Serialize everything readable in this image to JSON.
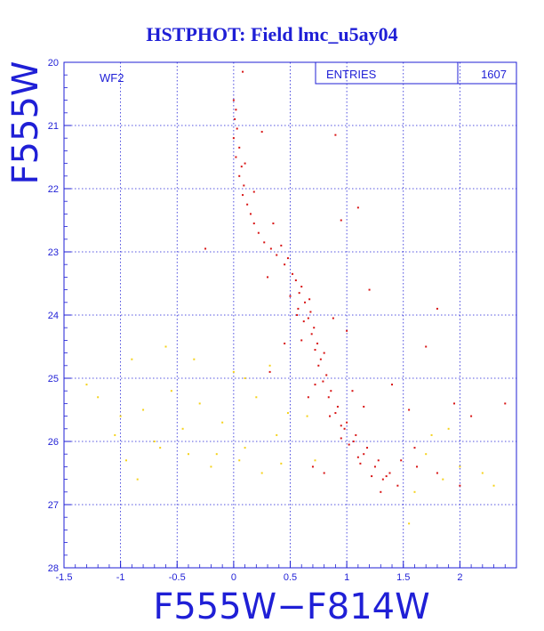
{
  "chart_data": {
    "type": "scatter",
    "title": "HSTPHOT: Field lmc_u5ay04",
    "xlabel": "F555W−F814W",
    "ylabel": "F555W",
    "panel_label": "WF2",
    "stats": {
      "label": "ENTRIES",
      "value": "1607"
    },
    "xlim": [
      -1.5,
      2.5
    ],
    "ylim": [
      28,
      20
    ],
    "y_inverted": true,
    "xticks": [
      -1.5,
      -1,
      -0.5,
      0,
      0.5,
      1,
      1.5,
      2
    ],
    "xtick_labels": [
      "-1.5",
      "-1",
      "-0.5",
      "0",
      "0.5",
      "1",
      "1.5",
      "2"
    ],
    "yticks": [
      20,
      21,
      22,
      23,
      24,
      25,
      26,
      27,
      28
    ],
    "ytick_labels": [
      "20",
      "21",
      "22",
      "23",
      "24",
      "25",
      "26",
      "27",
      "28"
    ],
    "grid": true,
    "grid_style": "dotted",
    "colors": {
      "text": "#1f1fd6",
      "axis": "#1f1fd6",
      "primary_points": "#d81414",
      "secondary_points": "#f5d21a"
    },
    "series": [
      {
        "color": "#d81414",
        "points": [
          [
            0.0,
            20.6
          ],
          [
            0.02,
            20.75
          ],
          [
            0.01,
            20.9
          ],
          [
            0.03,
            21.05
          ],
          [
            0.0,
            21.2
          ],
          [
            0.05,
            21.35
          ],
          [
            0.02,
            21.5
          ],
          [
            0.07,
            21.65
          ],
          [
            0.05,
            21.8
          ],
          [
            0.09,
            21.95
          ],
          [
            0.08,
            22.1
          ],
          [
            0.12,
            22.25
          ],
          [
            0.15,
            22.4
          ],
          [
            0.18,
            22.55
          ],
          [
            0.22,
            22.7
          ],
          [
            0.27,
            22.85
          ],
          [
            0.33,
            22.95
          ],
          [
            0.38,
            23.05
          ],
          [
            0.45,
            23.2
          ],
          [
            0.52,
            23.35
          ],
          [
            0.6,
            23.55
          ],
          [
            0.63,
            23.8
          ],
          [
            0.66,
            24.05
          ],
          [
            0.69,
            24.3
          ],
          [
            0.72,
            24.55
          ],
          [
            0.75,
            24.8
          ],
          [
            0.79,
            25.05
          ],
          [
            0.84,
            25.3
          ],
          [
            0.9,
            25.55
          ],
          [
            0.98,
            25.8
          ],
          [
            1.06,
            26.0
          ],
          [
            1.15,
            26.2
          ],
          [
            1.25,
            26.4
          ],
          [
            1.35,
            26.55
          ],
          [
            1.45,
            26.7
          ],
          [
            0.55,
            23.45
          ],
          [
            0.58,
            23.65
          ],
          [
            0.68,
            23.95
          ],
          [
            0.71,
            24.2
          ],
          [
            0.74,
            24.45
          ],
          [
            0.77,
            24.7
          ],
          [
            0.82,
            24.95
          ],
          [
            0.86,
            25.2
          ],
          [
            0.92,
            25.45
          ],
          [
            1.0,
            25.7
          ],
          [
            1.08,
            25.9
          ],
          [
            1.18,
            26.1
          ],
          [
            1.28,
            26.3
          ],
          [
            1.38,
            26.5
          ],
          [
            0.85,
            25.6
          ],
          [
            0.95,
            25.75
          ],
          [
            1.02,
            26.05
          ],
          [
            1.12,
            26.35
          ],
          [
            1.22,
            26.55
          ],
          [
            0.8,
            24.6
          ],
          [
            0.62,
            24.1
          ],
          [
            0.95,
            25.95
          ],
          [
            1.1,
            26.25
          ],
          [
            1.32,
            26.6
          ],
          [
            0.67,
            23.75
          ],
          [
            0.35,
            22.55
          ],
          [
            0.42,
            22.9
          ],
          [
            0.3,
            23.4
          ],
          [
            0.1,
            21.6
          ],
          [
            0.25,
            21.1
          ],
          [
            0.18,
            22.05
          ],
          [
            0.48,
            23.1
          ],
          [
            0.57,
            23.9
          ],
          [
            1.8,
            23.9
          ],
          [
            1.7,
            24.5
          ],
          [
            1.4,
            25.1
          ],
          [
            1.55,
            25.5
          ],
          [
            1.95,
            25.4
          ],
          [
            2.1,
            25.6
          ],
          [
            2.4,
            25.4
          ],
          [
            1.6,
            26.1
          ],
          [
            1.8,
            26.5
          ],
          [
            2.0,
            26.7
          ],
          [
            0.7,
            26.4
          ],
          [
            0.8,
            26.5
          ],
          [
            -0.25,
            22.95
          ],
          [
            0.08,
            20.15
          ],
          [
            0.32,
            24.9
          ],
          [
            1.1,
            22.3
          ],
          [
            1.2,
            23.6
          ],
          [
            0.9,
            21.15
          ],
          [
            0.95,
            22.5
          ],
          [
            1.0,
            24.25
          ],
          [
            0.45,
            24.45
          ],
          [
            1.3,
            26.8
          ],
          [
            1.48,
            26.3
          ],
          [
            1.62,
            26.4
          ],
          [
            1.05,
            25.2
          ],
          [
            1.15,
            25.45
          ],
          [
            0.72,
            25.1
          ],
          [
            0.66,
            25.3
          ],
          [
            0.6,
            24.4
          ],
          [
            0.56,
            24.0
          ],
          [
            0.5,
            23.7
          ],
          [
            0.88,
            24.05
          ]
        ]
      },
      {
        "color": "#f5d21a",
        "points": [
          [
            -1.3,
            25.1
          ],
          [
            -1.2,
            25.3
          ],
          [
            -1.05,
            25.9
          ],
          [
            -0.95,
            26.3
          ],
          [
            -0.9,
            24.7
          ],
          [
            -0.8,
            25.5
          ],
          [
            -0.7,
            26.0
          ],
          [
            -0.6,
            24.5
          ],
          [
            -0.55,
            25.2
          ],
          [
            -0.45,
            25.8
          ],
          [
            -0.4,
            26.2
          ],
          [
            -0.3,
            25.4
          ],
          [
            -0.2,
            26.4
          ],
          [
            -0.1,
            25.7
          ],
          [
            0.0,
            24.9
          ],
          [
            0.1,
            26.1
          ],
          [
            0.2,
            25.3
          ],
          [
            0.25,
            26.5
          ],
          [
            0.32,
            24.8
          ],
          [
            0.38,
            25.9
          ],
          [
            -0.85,
            26.6
          ],
          [
            -0.65,
            26.1
          ],
          [
            -0.15,
            26.2
          ],
          [
            1.7,
            26.2
          ],
          [
            1.85,
            26.6
          ],
          [
            1.9,
            25.8
          ],
          [
            2.0,
            26.4
          ],
          [
            2.2,
            26.5
          ],
          [
            2.3,
            26.7
          ],
          [
            1.6,
            26.8
          ],
          [
            0.42,
            26.35
          ],
          [
            0.48,
            25.55
          ],
          [
            0.1,
            25.0
          ],
          [
            -0.35,
            24.7
          ],
          [
            -1.0,
            25.6
          ],
          [
            0.65,
            25.6
          ],
          [
            0.72,
            26.3
          ],
          [
            1.55,
            27.3
          ],
          [
            1.75,
            25.9
          ],
          [
            0.05,
            26.3
          ]
        ]
      }
    ]
  }
}
